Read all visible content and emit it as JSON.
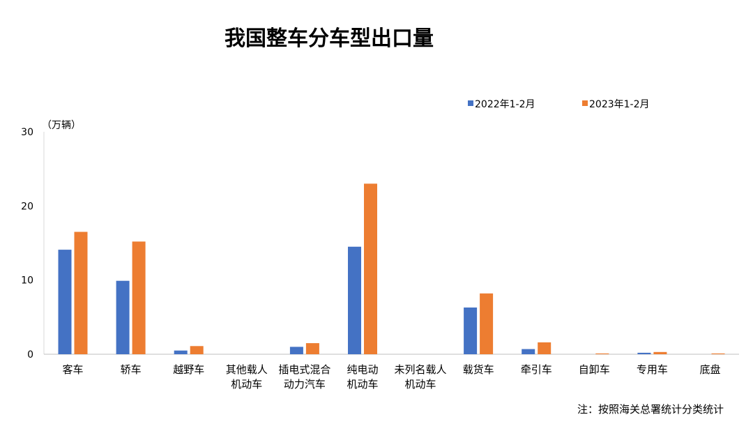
{
  "chart_data": {
    "type": "bar",
    "title": "我国整车分车型出口量",
    "unit_label": "（万辆）",
    "note": "注：按照海关总署统计分类统计",
    "ylim": [
      0,
      30
    ],
    "yticks": [
      "0",
      "10",
      "20",
      "30"
    ],
    "grid": false,
    "legend_position": "top-right",
    "categories": [
      [
        "客车"
      ],
      [
        "轿车"
      ],
      [
        "越野车"
      ],
      [
        "其他载人",
        "机动车"
      ],
      [
        "插电式混合",
        "动力汽车"
      ],
      [
        "纯电动",
        "机动车"
      ],
      [
        "未列名载人",
        "机动车"
      ],
      [
        "载货车"
      ],
      [
        "牵引车"
      ],
      [
        "自卸车"
      ],
      [
        "专用车"
      ],
      [
        "底盘"
      ]
    ],
    "series": [
      {
        "name": "2022年1-2月",
        "color": "#4472C4",
        "values": [
          14.1,
          9.9,
          0.5,
          0,
          1.0,
          14.5,
          0,
          6.3,
          0.7,
          0,
          0.2,
          0
        ]
      },
      {
        "name": "2023年1-2月",
        "color": "#ED7D31",
        "values": [
          16.5,
          15.2,
          1.1,
          0,
          1.5,
          23.0,
          0,
          8.2,
          1.6,
          0.1,
          0.3,
          0.1
        ]
      }
    ]
  }
}
